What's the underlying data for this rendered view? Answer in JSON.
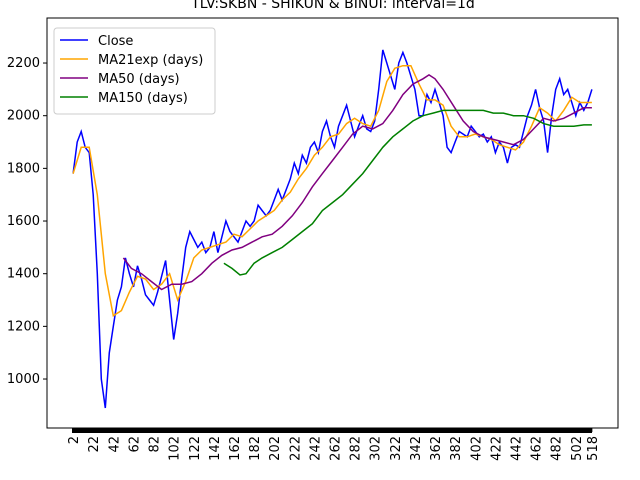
{
  "chart_data": {
    "type": "line",
    "title": "TLV:SKBN - SHIKUN & BINUI: interval=1d",
    "xlim": [
      -24,
      544
    ],
    "xticks": [
      2,
      22,
      42,
      62,
      82,
      102,
      122,
      142,
      162,
      182,
      202,
      222,
      242,
      262,
      282,
      302,
      322,
      342,
      362,
      382,
      402,
      422,
      442,
      462,
      482,
      502,
      518
    ],
    "ylim": [
      814,
      2371
    ],
    "yticks": [
      1000,
      1200,
      1400,
      1600,
      1800,
      2000,
      2200
    ],
    "legend": "upper left",
    "series": [
      {
        "name": "Close",
        "color": "#0000ff",
        "x": [
          2,
          6,
          10,
          14,
          18,
          22,
          26,
          30,
          34,
          38,
          42,
          46,
          50,
          54,
          58,
          62,
          66,
          70,
          74,
          78,
          82,
          86,
          90,
          94,
          98,
          102,
          106,
          110,
          114,
          118,
          122,
          126,
          130,
          134,
          138,
          142,
          146,
          150,
          154,
          158,
          162,
          166,
          170,
          174,
          178,
          182,
          186,
          190,
          194,
          198,
          202,
          206,
          210,
          214,
          218,
          222,
          226,
          230,
          234,
          238,
          242,
          246,
          250,
          254,
          258,
          262,
          266,
          270,
          274,
          278,
          282,
          286,
          290,
          294,
          298,
          302,
          306,
          310,
          314,
          318,
          322,
          326,
          330,
          334,
          338,
          342,
          346,
          350,
          354,
          358,
          362,
          366,
          370,
          374,
          378,
          382,
          386,
          390,
          394,
          398,
          402,
          406,
          410,
          414,
          418,
          422,
          426,
          430,
          434,
          438,
          442,
          446,
          450,
          454,
          458,
          462,
          466,
          470,
          474,
          478,
          482,
          486,
          490,
          494,
          498,
          502,
          506,
          510,
          514,
          518
        ],
        "values": [
          1780,
          1900,
          1940,
          1880,
          1860,
          1700,
          1400,
          1000,
          890,
          1100,
          1200,
          1300,
          1350,
          1460,
          1400,
          1350,
          1430,
          1380,
          1320,
          1300,
          1280,
          1330,
          1390,
          1450,
          1300,
          1150,
          1250,
          1380,
          1500,
          1560,
          1530,
          1500,
          1520,
          1480,
          1500,
          1560,
          1480,
          1540,
          1600,
          1560,
          1540,
          1520,
          1560,
          1600,
          1580,
          1600,
          1660,
          1640,
          1620,
          1640,
          1680,
          1720,
          1680,
          1720,
          1760,
          1820,
          1780,
          1850,
          1820,
          1880,
          1900,
          1860,
          1940,
          1980,
          1920,
          1880,
          1960,
          2000,
          2040,
          1980,
          1920,
          1960,
          2000,
          1950,
          1940,
          1980,
          2100,
          2250,
          2200,
          2150,
          2100,
          2200,
          2240,
          2200,
          2150,
          2100,
          2000,
          2000,
          2080,
          2050,
          2100,
          2050,
          2000,
          1880,
          1860,
          1900,
          1940,
          1930,
          1920,
          1960,
          1940,
          1920,
          1930,
          1900,
          1920,
          1860,
          1900,
          1880,
          1820,
          1880,
          1890,
          1880,
          1940,
          2000,
          2040,
          2100,
          2030,
          1980,
          1860,
          2000,
          2100,
          2140,
          2080,
          2100,
          2050,
          2000,
          2050,
          2020,
          2050,
          2100
        ]
      },
      {
        "name": "MA21exp (days)",
        "color": "#ffa500",
        "x": [
          2,
          10,
          18,
          26,
          34,
          42,
          50,
          58,
          66,
          74,
          82,
          90,
          98,
          106,
          114,
          122,
          130,
          138,
          146,
          154,
          162,
          170,
          178,
          186,
          194,
          202,
          210,
          218,
          226,
          234,
          242,
          250,
          258,
          266,
          274,
          282,
          290,
          298,
          306,
          314,
          322,
          330,
          338,
          346,
          354,
          362,
          370,
          378,
          386,
          394,
          402,
          410,
          418,
          426,
          434,
          442,
          450,
          458,
          466,
          474,
          482,
          490,
          498,
          506,
          518
        ],
        "values": [
          1780,
          1880,
          1880,
          1700,
          1400,
          1240,
          1260,
          1330,
          1390,
          1380,
          1340,
          1360,
          1400,
          1300,
          1370,
          1460,
          1490,
          1500,
          1510,
          1520,
          1550,
          1540,
          1570,
          1600,
          1620,
          1640,
          1680,
          1710,
          1760,
          1800,
          1850,
          1880,
          1920,
          1930,
          1970,
          1990,
          1970,
          1960,
          2020,
          2130,
          2180,
          2190,
          2190,
          2120,
          2060,
          2060,
          2040,
          1960,
          1920,
          1920,
          1930,
          1920,
          1910,
          1890,
          1880,
          1870,
          1900,
          1960,
          2030,
          2010,
          1980,
          2020,
          2070,
          2050,
          2050
        ]
      },
      {
        "name": "MA50 (days)",
        "color": "#800080",
        "x": [
          52,
          60,
          70,
          80,
          90,
          100,
          110,
          120,
          130,
          140,
          150,
          160,
          170,
          180,
          190,
          200,
          210,
          220,
          230,
          240,
          250,
          260,
          270,
          280,
          290,
          300,
          310,
          320,
          330,
          340,
          350,
          356,
          362,
          370,
          380,
          390,
          400,
          410,
          420,
          430,
          440,
          450,
          460,
          470,
          480,
          490,
          500,
          510,
          518
        ],
        "values": [
          1460,
          1420,
          1400,
          1370,
          1340,
          1360,
          1360,
          1370,
          1400,
          1440,
          1470,
          1490,
          1500,
          1520,
          1540,
          1550,
          1580,
          1620,
          1670,
          1730,
          1780,
          1830,
          1880,
          1930,
          1960,
          1950,
          1970,
          2020,
          2080,
          2120,
          2140,
          2155,
          2140,
          2100,
          2040,
          1980,
          1940,
          1920,
          1910,
          1900,
          1890,
          1910,
          1950,
          1990,
          1980,
          1990,
          2010,
          2030,
          2030
        ]
      },
      {
        "name": "MA150 (days)",
        "color": "#008000",
        "x": [
          152,
          160,
          168,
          174,
          182,
          190,
          200,
          210,
          220,
          230,
          240,
          250,
          260,
          270,
          280,
          290,
          300,
          310,
          320,
          330,
          340,
          350,
          360,
          370,
          380,
          390,
          400,
          410,
          420,
          430,
          440,
          450,
          460,
          470,
          480,
          490,
          500,
          510,
          518
        ],
        "values": [
          1440,
          1420,
          1395,
          1400,
          1440,
          1460,
          1480,
          1500,
          1530,
          1560,
          1590,
          1640,
          1670,
          1700,
          1740,
          1780,
          1830,
          1880,
          1920,
          1950,
          1980,
          2000,
          2010,
          2020,
          2020,
          2020,
          2020,
          2020,
          2010,
          2010,
          2000,
          2000,
          1990,
          1970,
          1960,
          1960,
          1960,
          1965,
          1965
        ]
      }
    ]
  }
}
